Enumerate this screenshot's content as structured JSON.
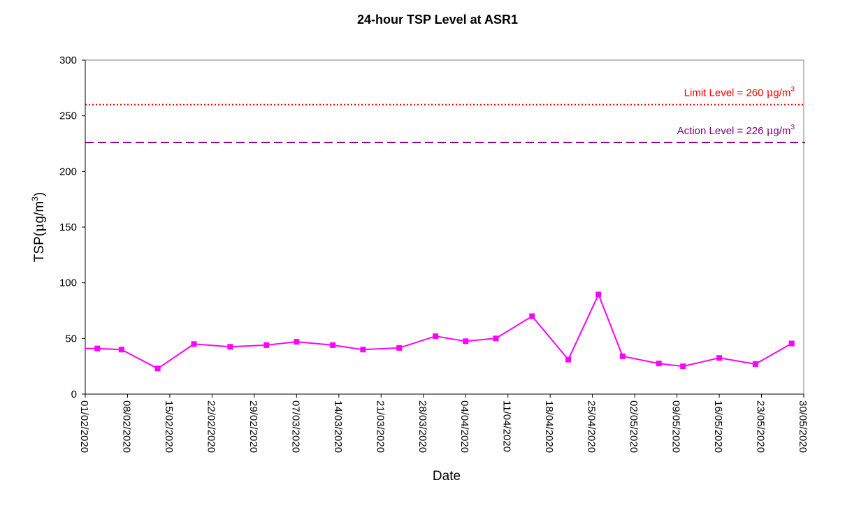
{
  "chart_data": {
    "type": "line",
    "title": "24-hour TSP Level at ASR1",
    "xlabel": "Date",
    "ylabel_prefix": "TSP(",
    "ylabel_mu": "μ",
    "ylabel_unit": "g/m",
    "ylabel_sup": "3",
    "ylabel_suffix": ")",
    "ylim": [
      0,
      300
    ],
    "yticks": [
      0,
      50,
      100,
      150,
      200,
      250,
      300
    ],
    "xlim": [
      "2020-02-01",
      "2020-05-30"
    ],
    "xticks": [
      "01/02/2020",
      "08/02/2020",
      "15/02/2020",
      "22/02/2020",
      "29/02/2020",
      "07/03/2020",
      "14/03/2020",
      "21/03/2020",
      "28/03/2020",
      "04/04/2020",
      "11/04/2020",
      "18/04/2020",
      "25/04/2020",
      "02/05/2020",
      "09/05/2020",
      "16/05/2020",
      "23/05/2020",
      "30/05/2020"
    ],
    "grid": false,
    "series": [
      {
        "color": "#FF00FF",
        "marker": "square",
        "points": [
          {
            "x": "2020-02-03",
            "y": 41
          },
          {
            "x": "2020-02-07",
            "y": 40
          },
          {
            "x": "2020-02-13",
            "y": 23
          },
          {
            "x": "2020-02-19",
            "y": 45
          },
          {
            "x": "2020-02-25",
            "y": 42.5
          },
          {
            "x": "2020-03-02",
            "y": 44
          },
          {
            "x": "2020-03-07",
            "y": 47
          },
          {
            "x": "2020-03-13",
            "y": 44
          },
          {
            "x": "2020-03-18",
            "y": 40
          },
          {
            "x": "2020-03-24",
            "y": 41.5
          },
          {
            "x": "2020-03-30",
            "y": 52
          },
          {
            "x": "2020-04-04",
            "y": 47.5
          },
          {
            "x": "2020-04-09",
            "y": 50
          },
          {
            "x": "2020-04-15",
            "y": 70
          },
          {
            "x": "2020-04-21",
            "y": 31
          },
          {
            "x": "2020-04-26",
            "y": 89.5
          },
          {
            "x": "2020-04-30",
            "y": 34
          },
          {
            "x": "2020-05-06",
            "y": 27.5
          },
          {
            "x": "2020-05-10",
            "y": 25
          },
          {
            "x": "2020-05-16",
            "y": 32.5
          },
          {
            "x": "2020-05-22",
            "y": 27
          },
          {
            "x": "2020-05-28",
            "y": 45.5
          }
        ]
      }
    ],
    "reference_lines": [
      {
        "value": 260,
        "label_prefix": "Limit Level = 260 ",
        "label_mu": "μ",
        "label_unit": "g/m",
        "label_sup": "3",
        "color": "#FF0000",
        "style": "dotted"
      },
      {
        "value": 226,
        "label_prefix": "Action Level = 226 ",
        "label_mu": "μ",
        "label_unit": "g/m",
        "label_sup": "3",
        "color": "#800080",
        "style": "dashed"
      }
    ]
  }
}
